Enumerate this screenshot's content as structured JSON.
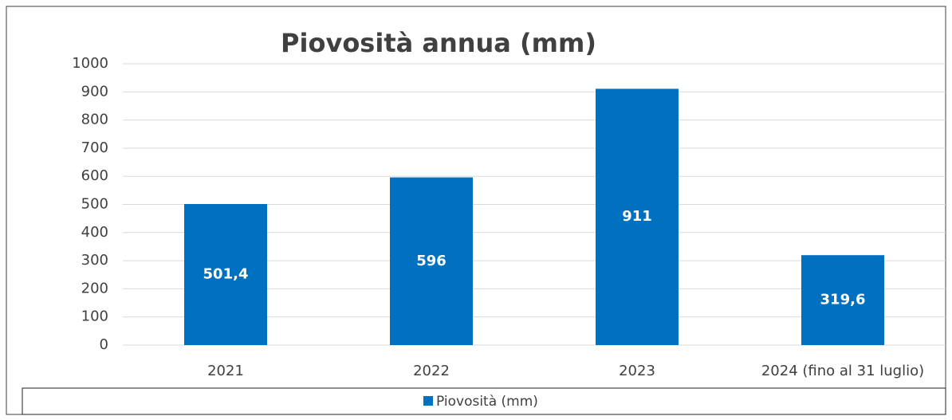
{
  "chart_data": {
    "type": "bar",
    "title": "Piovosità annua (mm)",
    "categories": [
      "2021",
      "2022",
      "2023",
      "2024 (fino al 31 luglio)"
    ],
    "series": [
      {
        "name": "Piovosità (mm)",
        "color": "#0070c0",
        "values": [
          501.4,
          596,
          911,
          319.6
        ],
        "value_labels": [
          "501,4",
          "596",
          "911",
          "319,6"
        ]
      }
    ],
    "ylim": [
      0,
      1000
    ],
    "yticks": [
      0,
      100,
      200,
      300,
      400,
      500,
      600,
      700,
      800,
      900,
      1000
    ],
    "grid": true,
    "legend": "bottom"
  }
}
